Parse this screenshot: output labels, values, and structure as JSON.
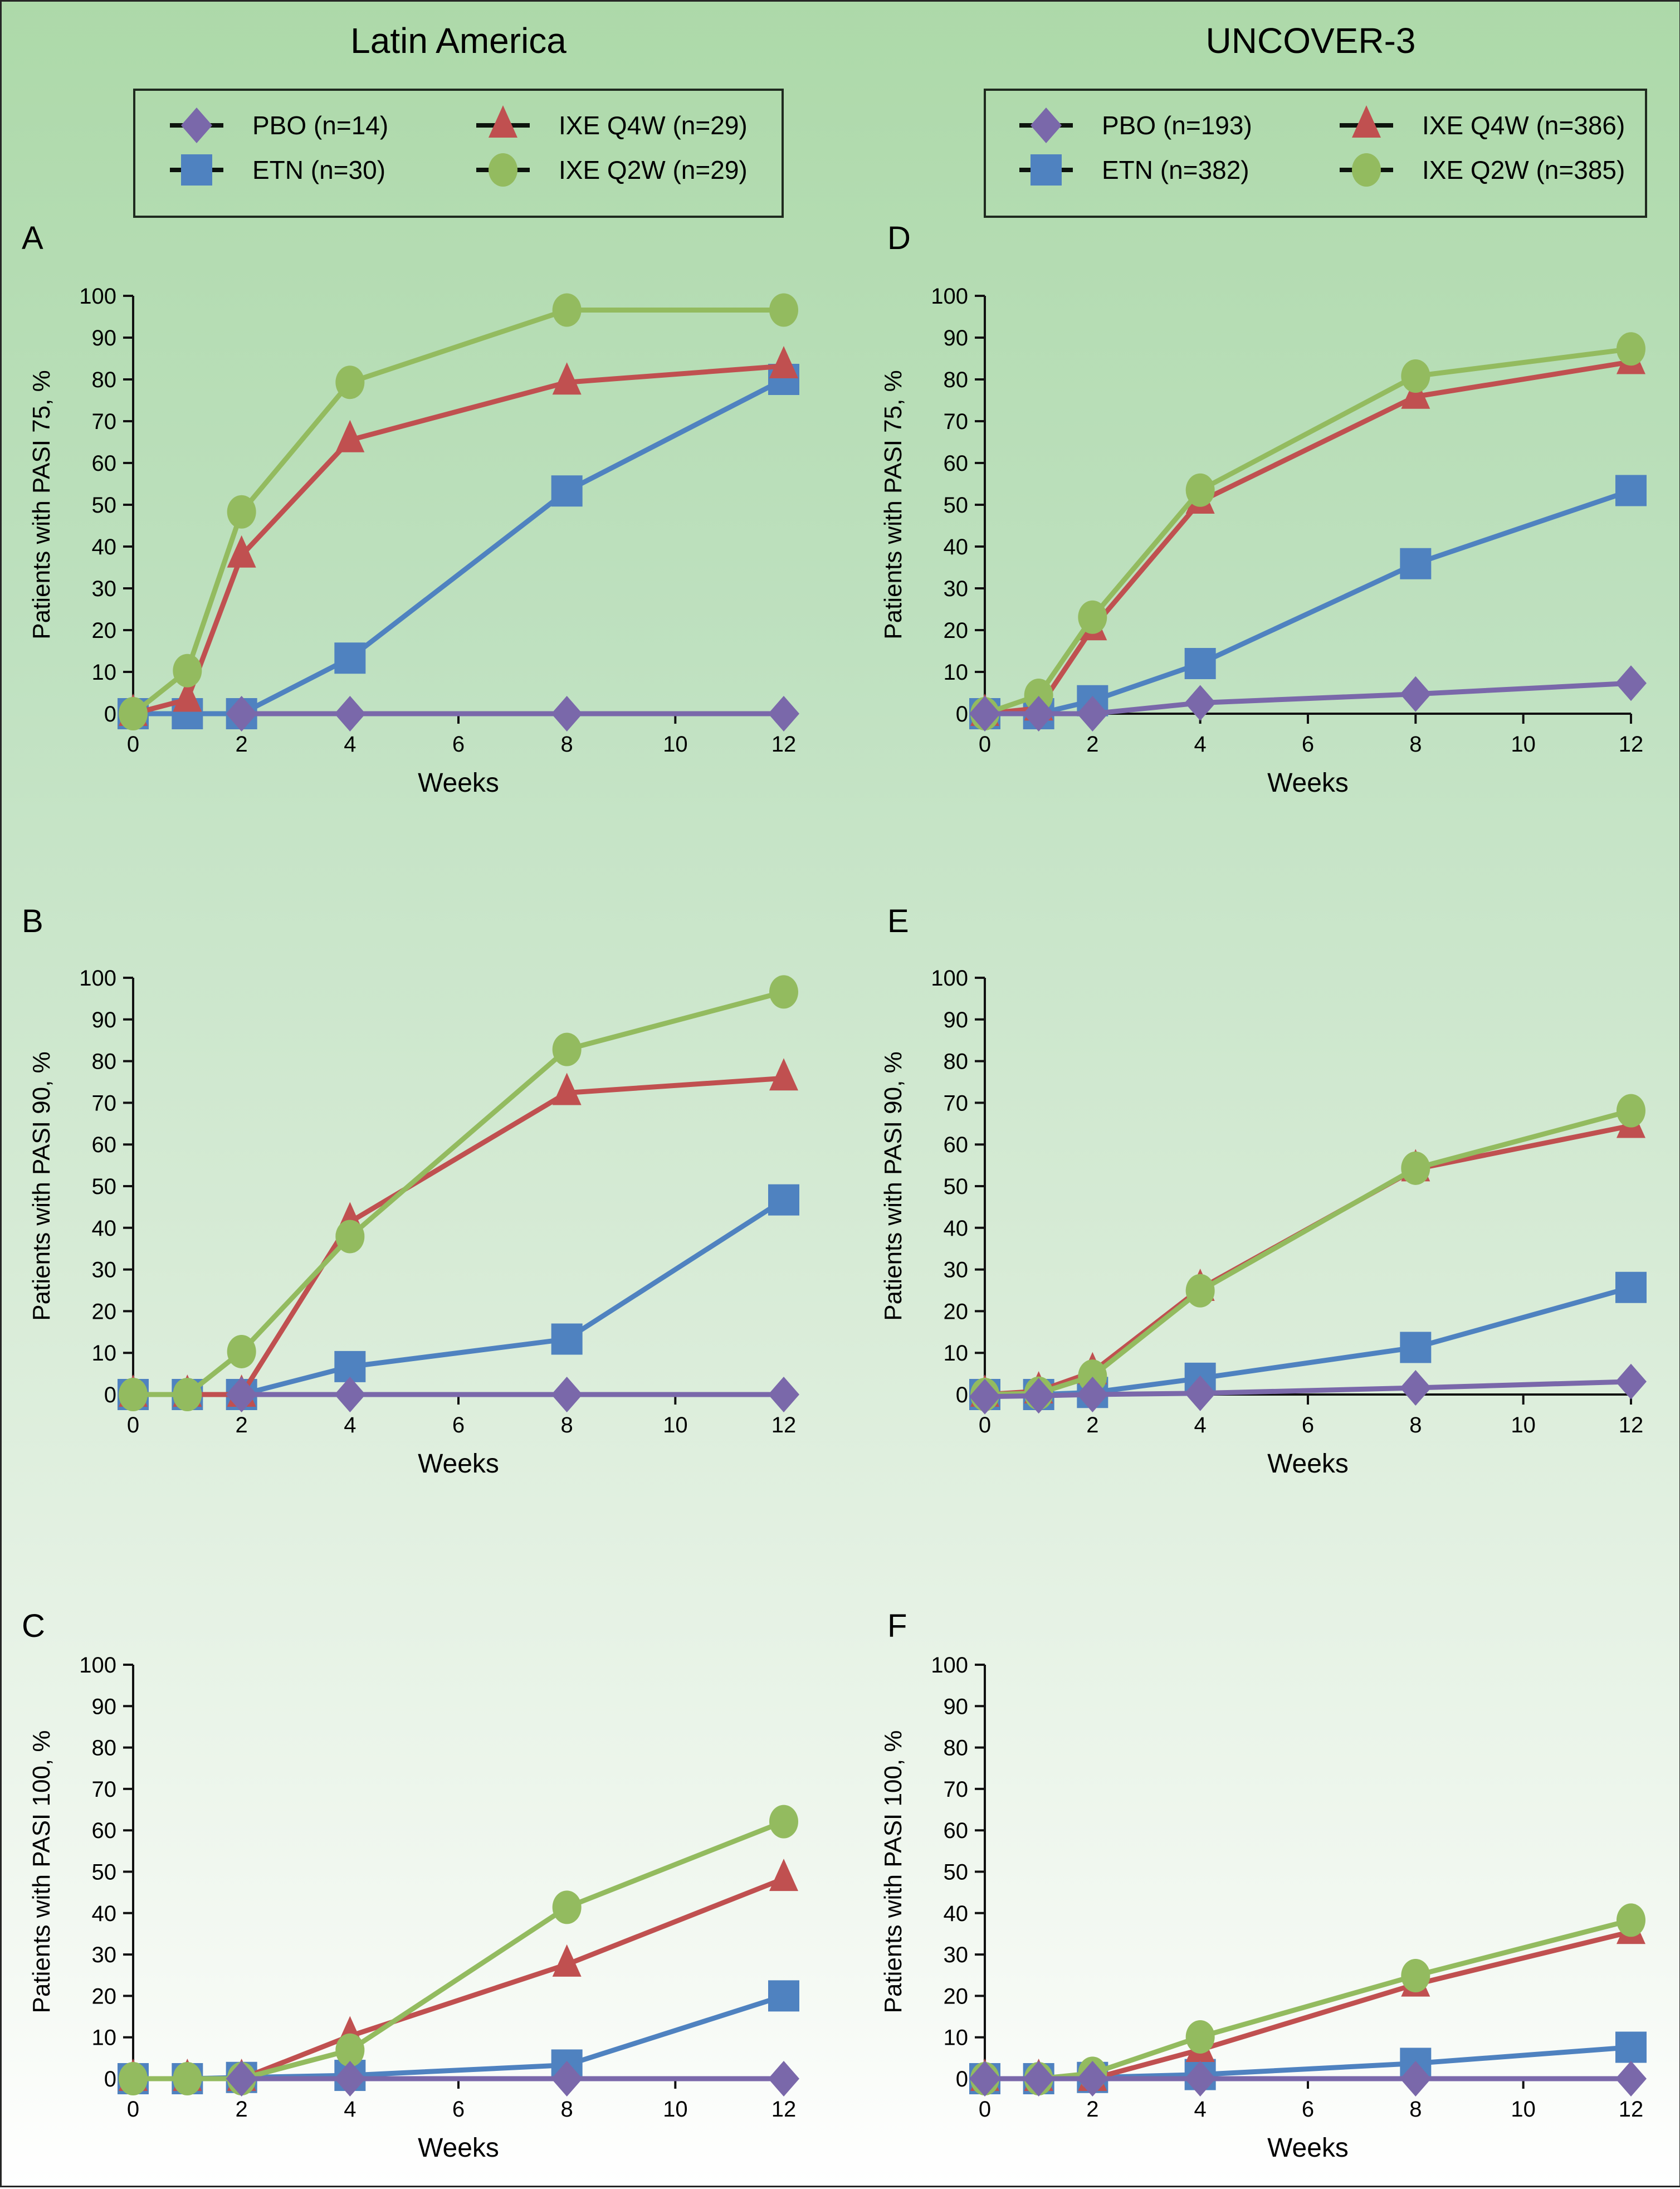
{
  "figure": {
    "columns": [
      {
        "title": "Latin America",
        "legend": [
          {
            "key": "PBO",
            "label": "PBO (n=14)"
          },
          {
            "key": "ETN",
            "label": "ETN (n=30)"
          },
          {
            "key": "Q4W",
            "label": "IXE Q4W (n=29)"
          },
          {
            "key": "Q2W",
            "label": "IXE Q2W (n=29)"
          }
        ]
      },
      {
        "title": "UNCOVER-3",
        "legend": [
          {
            "key": "PBO",
            "label": "PBO (n=193)"
          },
          {
            "key": "ETN",
            "label": "ETN (n=382)"
          },
          {
            "key": "Q4W",
            "label": "IXE Q4W (n=386)"
          },
          {
            "key": "Q2W",
            "label": "IXE Q2W (n=385)"
          }
        ]
      }
    ],
    "series_styles": {
      "PBO": {
        "color": "#7a68aa",
        "marker": "diamond"
      },
      "ETN": {
        "color": "#4f82c0",
        "marker": "square"
      },
      "Q4W": {
        "color": "#c05050",
        "marker": "triangle"
      },
      "Q2W": {
        "color": "#93bb5f",
        "marker": "circle"
      }
    }
  },
  "chart_data": [
    {
      "panel": "A",
      "column": 0,
      "row": 0,
      "type": "line",
      "title": "",
      "xlabel": "Weeks",
      "ylabel": "Patients with PASI 75, %",
      "x": [
        0,
        1,
        2,
        4,
        8,
        12
      ],
      "xticks": [
        0,
        2,
        4,
        6,
        8,
        10,
        12
      ],
      "yticks": [
        0,
        10,
        20,
        30,
        40,
        50,
        60,
        70,
        80,
        90,
        100
      ],
      "xlim": [
        0,
        12
      ],
      "ylim": [
        0,
        100
      ],
      "grid": false,
      "series": [
        {
          "key": "PBO",
          "name": "PBO (n=14)",
          "x": [
            2,
            4,
            8,
            12
          ],
          "values": [
            0,
            0,
            0,
            0
          ]
        },
        {
          "key": "ETN",
          "name": "ETN (n=30)",
          "values": [
            0,
            0,
            0,
            13.3,
            53.3,
            80.0
          ]
        },
        {
          "key": "Q4W",
          "name": "IXE Q4W (n=29)",
          "values": [
            0,
            3.4,
            37.9,
            65.5,
            79.3,
            83.2
          ]
        },
        {
          "key": "Q2W",
          "name": "IXE Q2W (n=29)",
          "values": [
            0,
            10.3,
            48.3,
            79.3,
            96.6,
            96.6
          ]
        }
      ]
    },
    {
      "panel": "B",
      "column": 0,
      "row": 1,
      "type": "line",
      "title": "",
      "xlabel": "Weeks",
      "ylabel": "Patients with PASI 90, %",
      "x": [
        0,
        1,
        2,
        4,
        8,
        12
      ],
      "xticks": [
        0,
        2,
        4,
        6,
        8,
        10,
        12
      ],
      "yticks": [
        0,
        10,
        20,
        30,
        40,
        50,
        60,
        70,
        80,
        90,
        100
      ],
      "xlim": [
        0,
        12
      ],
      "ylim": [
        0,
        100
      ],
      "grid": false,
      "series": [
        {
          "key": "PBO",
          "name": "PBO (n=14)",
          "x": [
            2,
            4,
            8,
            12
          ],
          "values": [
            0,
            0,
            0,
            0
          ]
        },
        {
          "key": "ETN",
          "name": "ETN (n=30)",
          "values": [
            0,
            0,
            0,
            6.7,
            13.3,
            46.7
          ]
        },
        {
          "key": "Q4W",
          "name": "IXE Q4W (n=29)",
          "values": [
            0,
            0,
            0,
            41.4,
            72.4,
            75.9
          ]
        },
        {
          "key": "Q2W",
          "name": "IXE Q2W (n=29)",
          "values": [
            0,
            0,
            10.3,
            37.9,
            82.8,
            96.6
          ]
        }
      ]
    },
    {
      "panel": "C",
      "column": 0,
      "row": 2,
      "type": "line",
      "title": "",
      "xlabel": "Weeks",
      "ylabel": "Patients with PASI 100, %",
      "x": [
        0,
        1,
        2,
        4,
        8,
        12
      ],
      "xticks": [
        0,
        2,
        4,
        6,
        8,
        10,
        12
      ],
      "yticks": [
        0,
        10,
        20,
        30,
        40,
        50,
        60,
        70,
        80,
        90,
        100
      ],
      "xlim": [
        0,
        12
      ],
      "ylim": [
        0,
        100
      ],
      "grid": false,
      "series": [
        {
          "key": "PBO",
          "name": "PBO (n=14)",
          "x": [
            2,
            4,
            8,
            12
          ],
          "values": [
            0,
            0,
            0,
            0
          ]
        },
        {
          "key": "ETN",
          "name": "ETN (n=30)",
          "values": [
            0,
            0,
            0.3,
            0.8,
            3.3,
            20.0
          ]
        },
        {
          "key": "Q4W",
          "name": "IXE Q4W (n=29)",
          "values": [
            0,
            0,
            0,
            10.3,
            27.6,
            48.3
          ]
        },
        {
          "key": "Q2W",
          "name": "IXE Q2W (n=29)",
          "values": [
            0,
            0,
            0,
            6.9,
            41.4,
            62.1
          ]
        }
      ]
    },
    {
      "panel": "D",
      "column": 1,
      "row": 0,
      "type": "line",
      "title": "",
      "xlabel": "Weeks",
      "ylabel": "Patients with PASI 75, %",
      "x": [
        0,
        1,
        2,
        4,
        8,
        12
      ],
      "xticks": [
        0,
        2,
        4,
        6,
        8,
        10,
        12
      ],
      "yticks": [
        0,
        10,
        20,
        30,
        40,
        50,
        60,
        70,
        80,
        90,
        100
      ],
      "xlim": [
        0,
        12
      ],
      "ylim": [
        0,
        100
      ],
      "grid": false,
      "series": [
        {
          "key": "PBO",
          "name": "PBO (n=193)",
          "values": [
            0,
            0,
            0,
            2.6,
            4.7,
            7.3
          ]
        },
        {
          "key": "ETN",
          "name": "ETN (n=382)",
          "values": [
            0,
            0,
            3.1,
            12.0,
            35.9,
            53.4
          ]
        },
        {
          "key": "Q4W",
          "name": "IXE Q4W (n=386)",
          "values": [
            0,
            1.3,
            20.5,
            50.8,
            75.9,
            84.2
          ]
        },
        {
          "key": "Q2W",
          "name": "IXE Q2W (n=385)",
          "values": [
            0,
            4.4,
            23.1,
            53.5,
            80.8,
            87.3
          ]
        }
      ]
    },
    {
      "panel": "E",
      "column": 1,
      "row": 1,
      "type": "line",
      "title": "",
      "xlabel": "Weeks",
      "ylabel": "Patients with PASI 90, %",
      "x": [
        0,
        1,
        2,
        4,
        8,
        12
      ],
      "xticks": [
        0,
        2,
        4,
        6,
        8,
        10,
        12
      ],
      "yticks": [
        0,
        10,
        20,
        30,
        40,
        50,
        60,
        70,
        80,
        90,
        100
      ],
      "xlim": [
        0,
        12
      ],
      "ylim": [
        0,
        100
      ],
      "grid": false,
      "series": [
        {
          "key": "PBO",
          "name": "PBO (n=193)",
          "values": [
            -0.5,
            -0.3,
            0,
            0.3,
            1.6,
            3.1
          ]
        },
        {
          "key": "ETN",
          "name": "ETN (n=382)",
          "values": [
            0,
            0,
            0.5,
            3.9,
            11.3,
            25.7
          ]
        },
        {
          "key": "Q4W",
          "name": "IXE Q4W (n=386)",
          "values": [
            0,
            0.8,
            5.4,
            25.4,
            54.1,
            64.5
          ]
        },
        {
          "key": "Q2W",
          "name": "IXE Q2W (n=385)",
          "values": [
            0,
            0.3,
            4.4,
            24.9,
            54.3,
            68.1
          ]
        }
      ]
    },
    {
      "panel": "F",
      "column": 1,
      "row": 2,
      "type": "line",
      "title": "",
      "xlabel": "Weeks",
      "ylabel": "Patients with PASI 100, %",
      "x": [
        0,
        1,
        2,
        4,
        8,
        12
      ],
      "xticks": [
        0,
        2,
        4,
        6,
        8,
        10,
        12
      ],
      "yticks": [
        0,
        10,
        20,
        30,
        40,
        50,
        60,
        70,
        80,
        90,
        100
      ],
      "xlim": [
        0,
        12
      ],
      "ylim": [
        0,
        100
      ],
      "grid": false,
      "series": [
        {
          "key": "PBO",
          "name": "PBO (n=193)",
          "values": [
            0,
            0,
            0,
            0,
            0,
            0
          ]
        },
        {
          "key": "ETN",
          "name": "ETN (n=382)",
          "values": [
            0,
            0,
            0.3,
            1.0,
            3.7,
            7.6
          ]
        },
        {
          "key": "Q4W",
          "name": "IXE Q4W (n=386)",
          "values": [
            0,
            0,
            0,
            7.0,
            22.8,
            35.5
          ]
        },
        {
          "key": "Q2W",
          "name": "IXE Q2W (n=385)",
          "values": [
            0,
            0,
            1.3,
            10.1,
            24.9,
            38.3
          ]
        }
      ]
    }
  ]
}
